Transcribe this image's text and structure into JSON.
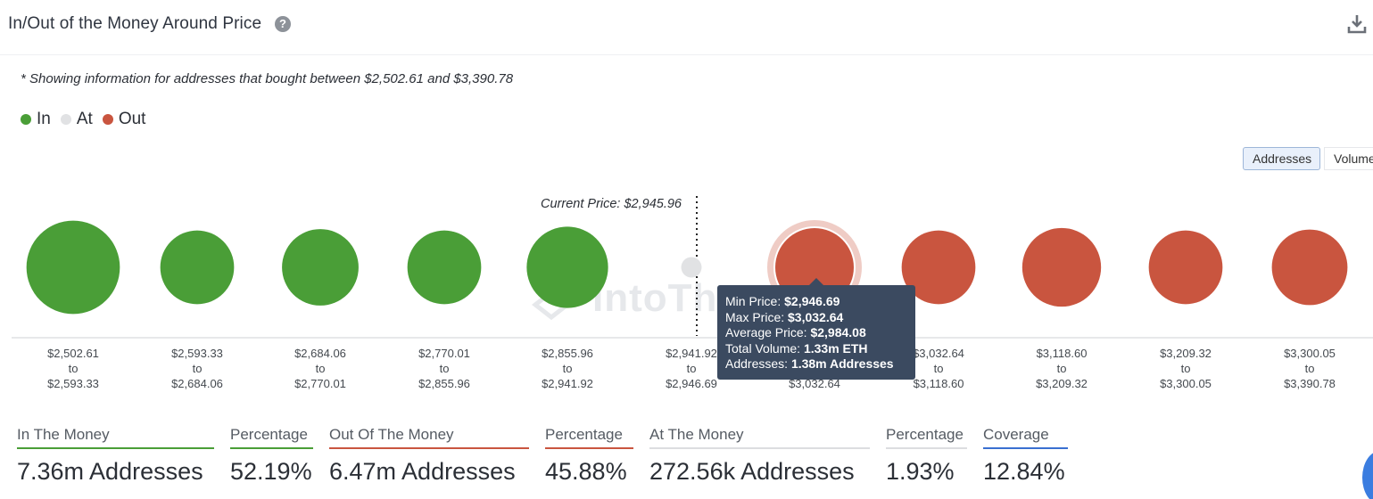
{
  "header": {
    "title": "In/Out of the Money Around Price",
    "help_icon": "question-circle-icon",
    "download_icon": "download-icon"
  },
  "note": "* Showing information for addresses that bought between $2,502.61 and $3,390.78",
  "legend": [
    {
      "label": "In",
      "color": "#4a9e37"
    },
    {
      "label": "At",
      "color": "#e1e2e4"
    },
    {
      "label": "Out",
      "color": "#c9553f"
    }
  ],
  "toggles": {
    "addresses": "Addresses",
    "volume": "Volume"
  },
  "watermark": "IntoThe",
  "chart_data": {
    "type": "bubble",
    "current_price_label": "Current Price: $2,945.96",
    "status_colors": {
      "In": "#4a9e37",
      "At": "#e1e2e4",
      "Out": "#c9553f"
    },
    "buckets": [
      {
        "from": "$2,502.61",
        "to": "$2,593.33",
        "status": "In",
        "addresses_m": 1.25
      },
      {
        "from": "$2,593.33",
        "to": "$2,684.06",
        "status": "In",
        "addresses_m": 0.78
      },
      {
        "from": "$2,684.06",
        "to": "$2,770.01",
        "status": "In",
        "addresses_m": 0.84
      },
      {
        "from": "$2,770.01",
        "to": "$2,855.96",
        "status": "In",
        "addresses_m": 0.78
      },
      {
        "from": "$2,855.96",
        "to": "$2,941.92",
        "status": "In",
        "addresses_m": 0.95
      },
      {
        "from": "$2,941.92",
        "to": "$2,946.69",
        "status": "At",
        "addresses_m": 0.06
      },
      {
        "from": "$2,946.69",
        "to": "$3,032.64",
        "status": "Out",
        "addresses_m": 1.38,
        "highlighted": true
      },
      {
        "from": "$3,032.64",
        "to": "$3,118.60",
        "status": "Out",
        "addresses_m": 0.78
      },
      {
        "from": "$3,118.60",
        "to": "$3,209.32",
        "status": "Out",
        "addresses_m": 0.89
      },
      {
        "from": "$3,209.32",
        "to": "$3,300.05",
        "status": "Out",
        "addresses_m": 0.78
      },
      {
        "from": "$3,300.05",
        "to": "$3,390.78",
        "status": "Out",
        "addresses_m": 0.82
      }
    ],
    "range_joiner": "to",
    "tooltip": {
      "min_price_label": "Min Price:",
      "min_price": "$2,946.69",
      "max_price_label": "Max Price:",
      "max_price": "$3,032.64",
      "avg_price_label": "Average Price:",
      "avg_price": "$2,984.08",
      "volume_label": "Total Volume:",
      "volume": "1.33m ETH",
      "addresses_label": "Addresses:",
      "addresses": "1.38m Addresses"
    }
  },
  "summary": [
    {
      "label": "In The Money",
      "value": "7.36m Addresses",
      "color": "#4a9e37"
    },
    {
      "label": "Percentage",
      "value": "52.19%",
      "color": "#4a9e37"
    },
    {
      "label": "Out Of The Money",
      "value": "6.47m Addresses",
      "color": "#c9553f"
    },
    {
      "label": "Percentage",
      "value": "45.88%",
      "color": "#c9553f"
    },
    {
      "label": "At The Money",
      "value": "272.56k Addresses",
      "color": "#dcdde0"
    },
    {
      "label": "Percentage",
      "value": "1.93%",
      "color": "#dcdde0"
    },
    {
      "label": "Coverage",
      "value": "12.84%",
      "color": "#3a6fd1"
    }
  ]
}
